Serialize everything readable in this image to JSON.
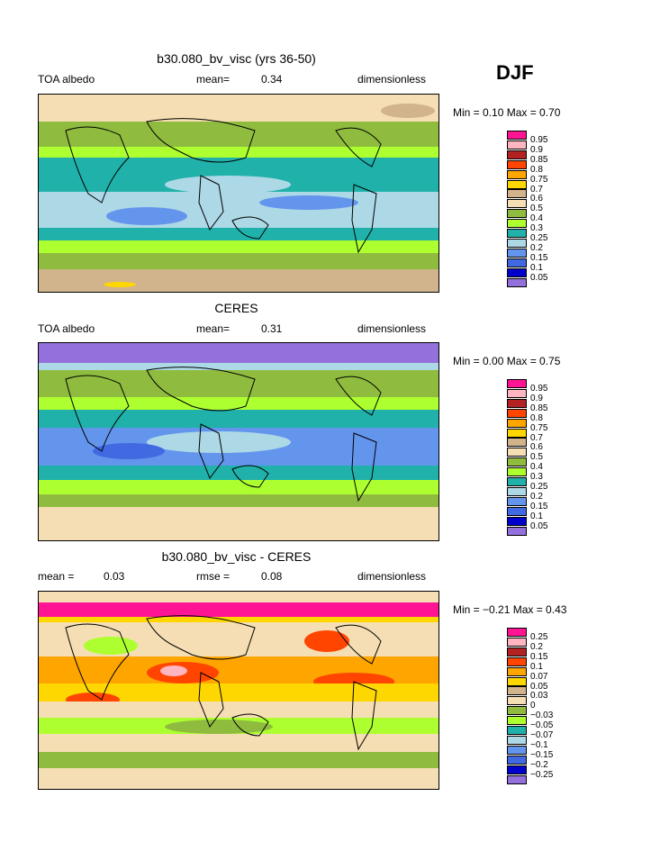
{
  "season": "DJF",
  "colors": {
    "c95": "#ff1493",
    "c90": "#ffb6c1",
    "c85": "#b22222",
    "c80": "#ff4500",
    "c75": "#ffa500",
    "c70": "#ffd700",
    "c60": "#d2b48c",
    "c50": "#f5deb3",
    "c40": "#8fbc3f",
    "c30": "#adff2f",
    "c25": "#20b2aa",
    "c20": "#add8e6",
    "c15": "#6495ed",
    "c10": "#4169e1",
    "c05": "#0000cd",
    "c00": "#9370db"
  },
  "panels": [
    {
      "title": "b30.080_bv_visc (yrs 36-50)",
      "left_label": "TOA albedo",
      "center_label": "mean=",
      "center_value": "0.34",
      "right_label": "dimensionless",
      "range": "Min =    0.10  Max =    0.70",
      "legend": [
        "0.95",
        "0.9",
        "0.85",
        "0.8",
        "0.75",
        "0.7",
        "0.6",
        "0.5",
        "0.4",
        "0.3",
        "0.25",
        "0.2",
        "0.15",
        "0.1",
        "0.05"
      ],
      "legend_colors": [
        "#ff1493",
        "#ffb6c1",
        "#b22222",
        "#ff4500",
        "#ffa500",
        "#ffd700",
        "#d2b48c",
        "#f5deb3",
        "#8fbc3f",
        "#adff2f",
        "#20b2aa",
        "#add8e6",
        "#6495ed",
        "#4169e1",
        "#0000cd",
        "#9370db"
      ]
    },
    {
      "title": "CERES",
      "left_label": "TOA albedo",
      "center_label": "mean=",
      "center_value": "0.31",
      "right_label": "dimensionless",
      "range": "Min =    0.00  Max =    0.75",
      "legend": [
        "0.95",
        "0.9",
        "0.85",
        "0.8",
        "0.75",
        "0.7",
        "0.6",
        "0.5",
        "0.4",
        "0.3",
        "0.25",
        "0.2",
        "0.15",
        "0.1",
        "0.05"
      ],
      "legend_colors": [
        "#ff1493",
        "#ffb6c1",
        "#b22222",
        "#ff4500",
        "#ffa500",
        "#ffd700",
        "#d2b48c",
        "#f5deb3",
        "#8fbc3f",
        "#adff2f",
        "#20b2aa",
        "#add8e6",
        "#6495ed",
        "#4169e1",
        "#0000cd",
        "#9370db"
      ]
    },
    {
      "title": "b30.080_bv_visc - CERES",
      "left_label": "mean =",
      "left_value": "0.03",
      "center_label": "rmse =",
      "center_value": "0.08",
      "right_label": "dimensionless",
      "range": "Min =   −0.21  Max =    0.43",
      "legend": [
        "0.25",
        "0.2",
        "0.15",
        "0.1",
        "0.07",
        "0.05",
        "0.03",
        "0",
        "−0.03",
        "−0.05",
        "−0.07",
        "−0.1",
        "−0.15",
        "−0.2",
        "−0.25"
      ],
      "legend_colors": [
        "#ff1493",
        "#ffb6c1",
        "#b22222",
        "#ff4500",
        "#ffa500",
        "#ffd700",
        "#d2b48c",
        "#f5deb3",
        "#8fbc3f",
        "#adff2f",
        "#20b2aa",
        "#add8e6",
        "#6495ed",
        "#4169e1",
        "#0000cd",
        "#9370db"
      ]
    }
  ]
}
